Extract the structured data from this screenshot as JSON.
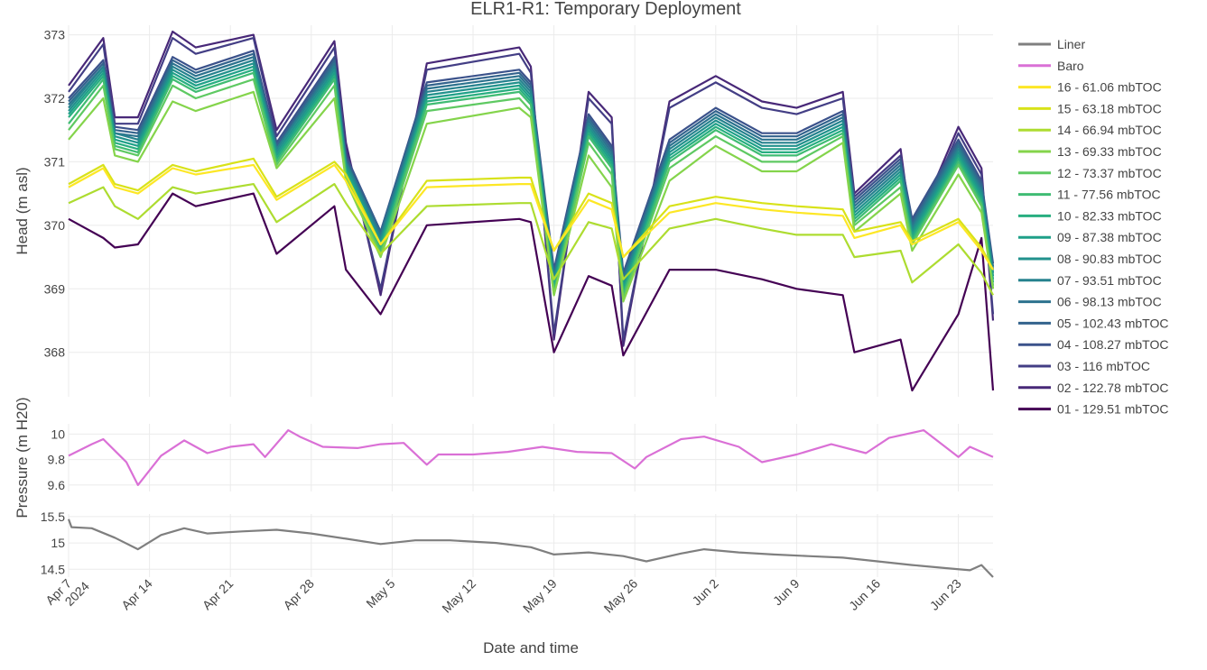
{
  "title": "ELR1-R1: Temporary Deployment",
  "xlabel": "Date and time",
  "x_ticks": [
    {
      "date": "2024-04-07",
      "label": "Apr 7",
      "label2": "2024"
    },
    {
      "date": "2024-04-14",
      "label": "Apr 14"
    },
    {
      "date": "2024-04-21",
      "label": "Apr 21"
    },
    {
      "date": "2024-04-28",
      "label": "Apr 28"
    },
    {
      "date": "2024-05-05",
      "label": "May 5"
    },
    {
      "date": "2024-05-12",
      "label": "May 12"
    },
    {
      "date": "2024-05-19",
      "label": "May 19"
    },
    {
      "date": "2024-05-26",
      "label": "May 26"
    },
    {
      "date": "2024-06-02",
      "label": "Jun 2"
    },
    {
      "date": "2024-06-09",
      "label": "Jun 9"
    },
    {
      "date": "2024-06-16",
      "label": "Jun 16"
    },
    {
      "date": "2024-06-23",
      "label": "Jun 23"
    }
  ],
  "legend": [
    {
      "name": "Liner",
      "color": "#7f7f7f"
    },
    {
      "name": "Baro",
      "color": "#da70d6"
    },
    {
      "name": "16 - 61.06 mbTOC",
      "color": "#fde725"
    },
    {
      "name": "15 - 63.18 mbTOC",
      "color": "#d8e219"
    },
    {
      "name": "14 - 66.94 mbTOC",
      "color": "#addc30"
    },
    {
      "name": "13 - 69.33 mbTOC",
      "color": "#84d44b"
    },
    {
      "name": "12 - 73.37 mbTOC",
      "color": "#5ec962"
    },
    {
      "name": "11 - 77.56 mbTOC",
      "color": "#3fbc73"
    },
    {
      "name": "10 - 82.33 mbTOC",
      "color": "#28ae80"
    },
    {
      "name": "09 - 87.38 mbTOC",
      "color": "#1fa088"
    },
    {
      "name": "08 - 90.83 mbTOC",
      "color": "#21918c"
    },
    {
      "name": "07 - 93.51 mbTOC",
      "color": "#26828e"
    },
    {
      "name": "06 - 98.13 mbTOC",
      "color": "#2c728e"
    },
    {
      "name": "05 - 102.43 mbTOC",
      "color": "#33638d"
    },
    {
      "name": "04 - 108.27 mbTOC",
      "color": "#3b528b"
    },
    {
      "name": "03 - 116 mbTOC",
      "color": "#433e85"
    },
    {
      "name": "02 - 122.78 mbTOC",
      "color": "#482878"
    },
    {
      "name": "01 - 129.51 mbTOC",
      "color": "#440154"
    }
  ],
  "chart_data": [
    {
      "type": "line",
      "ylabel": "Head (m asl)",
      "ylim": [
        367.3,
        373.15
      ],
      "yticks": [
        368,
        369,
        370,
        371,
        372,
        373
      ],
      "x_range": [
        "2024-04-07",
        "2024-06-26"
      ],
      "grid": true,
      "legend_position": "right",
      "series_note": "16 level series sampled at key dates; recessions between pumping events",
      "x": [
        "2024-04-07",
        "2024-04-10",
        "2024-04-11",
        "2024-04-13",
        "2024-04-16",
        "2024-04-18",
        "2024-04-23",
        "2024-04-25",
        "2024-04-30",
        "2024-05-01",
        "2024-05-04",
        "2024-05-08",
        "2024-05-16",
        "2024-05-17",
        "2024-05-19",
        "2024-05-22",
        "2024-05-24",
        "2024-05-25",
        "2024-05-29",
        "2024-06-02",
        "2024-06-06",
        "2024-06-09",
        "2024-06-13",
        "2024-06-14",
        "2024-06-18",
        "2024-06-19",
        "2024-06-23",
        "2024-06-25",
        "2024-06-26"
      ],
      "series": [
        {
          "name": "16 - 61.06 mbTOC",
          "values": [
            370.6,
            370.9,
            370.6,
            370.5,
            370.9,
            370.8,
            370.95,
            370.4,
            370.95,
            370.7,
            369.7,
            370.6,
            370.65,
            370.65,
            369.6,
            370.4,
            370.25,
            369.5,
            370.2,
            370.35,
            370.25,
            370.2,
            370.15,
            369.8,
            370.0,
            369.7,
            370.05,
            369.6,
            369.3
          ]
        },
        {
          "name": "15 - 63.18 mbTOC",
          "values": [
            370.65,
            370.95,
            370.65,
            370.55,
            370.95,
            370.85,
            371.05,
            370.45,
            371.0,
            370.8,
            369.7,
            370.7,
            370.75,
            370.75,
            369.6,
            370.5,
            370.35,
            369.5,
            370.3,
            370.45,
            370.35,
            370.3,
            370.25,
            369.9,
            370.05,
            369.75,
            370.1,
            369.65,
            369.3
          ]
        },
        {
          "name": "14 - 66.94 mbTOC",
          "values": [
            370.35,
            370.6,
            370.3,
            370.1,
            370.6,
            370.5,
            370.65,
            370.05,
            370.65,
            370.35,
            369.55,
            370.3,
            370.35,
            370.35,
            369.15,
            370.05,
            369.95,
            369.15,
            369.95,
            370.1,
            369.95,
            369.85,
            369.85,
            369.5,
            369.6,
            369.1,
            369.7,
            369.25,
            368.9
          ]
        },
        {
          "name": "13 - 69.33 mbTOC",
          "values": [
            371.35,
            372.0,
            371.1,
            371.0,
            371.95,
            371.8,
            372.1,
            370.9,
            372.0,
            370.7,
            369.5,
            371.6,
            371.85,
            371.7,
            368.9,
            371.1,
            370.6,
            368.8,
            370.7,
            371.25,
            370.85,
            370.85,
            371.3,
            369.9,
            370.5,
            369.6,
            370.8,
            370.2,
            369.0
          ]
        },
        {
          "name": "12 - 73.37 mbTOC",
          "values": [
            371.5,
            372.2,
            371.2,
            371.1,
            372.2,
            372.0,
            372.3,
            370.95,
            372.2,
            370.75,
            369.55,
            371.8,
            372.0,
            371.8,
            368.9,
            371.3,
            370.8,
            368.85,
            370.9,
            371.4,
            371.0,
            371.0,
            371.4,
            370.0,
            370.6,
            369.7,
            370.95,
            370.3,
            369.0
          ]
        },
        {
          "name": "11 - 77.56 mbTOC",
          "values": [
            371.6,
            372.3,
            371.25,
            371.15,
            372.3,
            372.1,
            372.4,
            371.0,
            372.3,
            370.8,
            369.6,
            371.9,
            372.1,
            371.9,
            368.95,
            371.4,
            370.9,
            368.9,
            371.0,
            371.5,
            371.1,
            371.1,
            371.45,
            370.05,
            370.7,
            369.75,
            371.0,
            370.35,
            369.05
          ]
        },
        {
          "name": "10 - 82.33 mbTOC",
          "values": [
            371.7,
            372.35,
            371.3,
            371.2,
            372.35,
            372.15,
            372.45,
            371.05,
            372.35,
            370.85,
            369.65,
            371.95,
            372.15,
            371.95,
            369.0,
            371.45,
            370.95,
            368.95,
            371.05,
            371.55,
            371.15,
            371.15,
            371.5,
            370.1,
            370.75,
            369.8,
            371.05,
            370.4,
            369.1
          ]
        },
        {
          "name": "09 - 87.38 mbTOC",
          "values": [
            371.75,
            372.4,
            371.35,
            371.25,
            372.4,
            372.2,
            372.5,
            371.1,
            372.4,
            370.9,
            369.7,
            372.0,
            372.2,
            372.0,
            369.05,
            371.5,
            371.0,
            369.0,
            371.1,
            371.6,
            371.2,
            371.2,
            371.55,
            370.15,
            370.8,
            369.85,
            371.1,
            370.45,
            369.15
          ]
        },
        {
          "name": "08 - 90.83 mbTOC",
          "values": [
            371.8,
            372.45,
            371.4,
            371.3,
            372.45,
            372.25,
            372.55,
            371.15,
            372.45,
            370.95,
            369.75,
            372.05,
            372.25,
            372.05,
            369.1,
            371.55,
            371.05,
            369.05,
            371.15,
            371.65,
            371.25,
            371.25,
            371.6,
            370.2,
            370.85,
            369.9,
            371.15,
            370.5,
            369.2
          ]
        },
        {
          "name": "07 - 93.51 mbTOC",
          "values": [
            371.85,
            372.5,
            371.45,
            371.35,
            372.5,
            372.3,
            372.6,
            371.2,
            372.5,
            371.0,
            369.8,
            372.1,
            372.3,
            372.1,
            369.15,
            371.6,
            371.1,
            369.1,
            371.2,
            371.7,
            371.3,
            371.3,
            371.65,
            370.25,
            370.9,
            369.95,
            371.2,
            370.55,
            369.25
          ]
        },
        {
          "name": "06 - 98.13 mbTOC",
          "values": [
            371.9,
            372.5,
            371.45,
            371.4,
            372.55,
            372.35,
            372.65,
            371.2,
            372.55,
            371.0,
            369.85,
            372.15,
            372.35,
            372.15,
            369.2,
            371.65,
            371.15,
            369.15,
            371.25,
            371.75,
            371.35,
            371.35,
            371.7,
            370.3,
            370.95,
            370.0,
            371.25,
            370.6,
            369.3
          ]
        },
        {
          "name": "05 - 102.43 mbTOC",
          "values": [
            371.95,
            372.55,
            371.5,
            371.45,
            372.6,
            372.4,
            372.7,
            371.25,
            372.6,
            371.05,
            369.9,
            372.2,
            372.4,
            372.2,
            369.25,
            371.7,
            371.2,
            369.2,
            371.3,
            371.8,
            371.4,
            371.4,
            371.75,
            370.35,
            371.0,
            370.05,
            371.3,
            370.65,
            369.35
          ]
        },
        {
          "name": "04 - 108.27 mbTOC",
          "values": [
            372.0,
            372.6,
            371.55,
            371.5,
            372.65,
            372.45,
            372.75,
            371.3,
            372.65,
            371.1,
            369.9,
            372.25,
            372.45,
            372.25,
            369.3,
            371.75,
            371.25,
            369.25,
            371.35,
            371.85,
            371.45,
            371.45,
            371.8,
            370.4,
            371.05,
            370.1,
            371.35,
            370.7,
            369.4
          ]
        },
        {
          "name": "03 - 116 mbTOC",
          "values": [
            372.1,
            372.85,
            371.6,
            371.6,
            372.95,
            372.7,
            372.95,
            371.4,
            372.8,
            371.2,
            369.0,
            372.45,
            372.7,
            372.4,
            368.3,
            372.0,
            371.6,
            368.2,
            371.85,
            372.25,
            371.85,
            371.75,
            372.0,
            370.45,
            371.1,
            369.8,
            371.45,
            370.8,
            368.6
          ]
        },
        {
          "name": "02 - 122.78 mbTOC",
          "values": [
            372.2,
            372.95,
            371.7,
            371.7,
            373.05,
            372.8,
            373.0,
            371.5,
            372.9,
            371.3,
            368.9,
            372.55,
            372.8,
            372.5,
            368.2,
            372.1,
            371.7,
            368.1,
            371.95,
            372.35,
            371.95,
            371.85,
            372.1,
            370.5,
            371.2,
            369.85,
            371.55,
            370.9,
            368.5
          ]
        },
        {
          "name": "01 - 129.51 mbTOC",
          "values": [
            370.1,
            369.8,
            369.65,
            369.7,
            370.5,
            370.3,
            370.5,
            369.55,
            370.3,
            369.3,
            368.6,
            370.0,
            370.1,
            370.05,
            368.0,
            369.2,
            369.05,
            367.95,
            369.3,
            369.3,
            369.15,
            369.0,
            368.9,
            368.0,
            368.2,
            367.4,
            368.6,
            369.8,
            367.4
          ]
        }
      ]
    },
    {
      "type": "line",
      "ylabel": "Pressure (m H20)",
      "ylim": [
        9.55,
        10.08
      ],
      "yticks": [
        9.6,
        9.8,
        10
      ],
      "series": [
        {
          "name": "Baro",
          "x": [
            "2024-04-07",
            "2024-04-09",
            "2024-04-10",
            "2024-04-12",
            "2024-04-13",
            "2024-04-15",
            "2024-04-17",
            "2024-04-19",
            "2024-04-21",
            "2024-04-23",
            "2024-04-24",
            "2024-04-26",
            "2024-04-27",
            "2024-04-29",
            "2024-05-02",
            "2024-05-04",
            "2024-05-06",
            "2024-05-08",
            "2024-05-09",
            "2024-05-12",
            "2024-05-15",
            "2024-05-18",
            "2024-05-21",
            "2024-05-24",
            "2024-05-26",
            "2024-05-27",
            "2024-05-30",
            "2024-06-01",
            "2024-06-04",
            "2024-06-06",
            "2024-06-09",
            "2024-06-12",
            "2024-06-15",
            "2024-06-17",
            "2024-06-20",
            "2024-06-23",
            "2024-06-24",
            "2024-06-26"
          ],
          "values": [
            9.83,
            9.92,
            9.96,
            9.78,
            9.6,
            9.83,
            9.95,
            9.85,
            9.9,
            9.92,
            9.82,
            10.03,
            9.98,
            9.9,
            9.89,
            9.92,
            9.93,
            9.76,
            9.84,
            9.84,
            9.86,
            9.9,
            9.86,
            9.85,
            9.73,
            9.82,
            9.96,
            9.98,
            9.9,
            9.78,
            9.84,
            9.92,
            9.85,
            9.97,
            10.03,
            9.82,
            9.9,
            9.82
          ]
        }
      ]
    },
    {
      "type": "line",
      "ylabel": "",
      "ylim": [
        14.35,
        15.55
      ],
      "yticks": [
        14.5,
        15,
        15.5
      ],
      "series": [
        {
          "name": "Liner",
          "x": [
            "2024-04-07",
            "2024-04-07T06",
            "2024-04-09",
            "2024-04-11",
            "2024-04-13",
            "2024-04-15",
            "2024-04-17",
            "2024-04-19",
            "2024-04-22",
            "2024-04-25",
            "2024-04-28",
            "2024-05-01",
            "2024-05-04",
            "2024-05-07",
            "2024-05-10",
            "2024-05-14",
            "2024-05-17",
            "2024-05-19",
            "2024-05-22",
            "2024-05-25",
            "2024-05-27",
            "2024-05-30",
            "2024-06-01",
            "2024-06-04",
            "2024-06-07",
            "2024-06-10",
            "2024-06-13",
            "2024-06-16",
            "2024-06-19",
            "2024-06-22",
            "2024-06-24",
            "2024-06-25",
            "2024-06-26"
          ],
          "values": [
            15.45,
            15.3,
            15.28,
            15.1,
            14.88,
            15.15,
            15.28,
            15.18,
            15.22,
            15.25,
            15.18,
            15.08,
            14.98,
            15.05,
            15.05,
            15.0,
            14.92,
            14.78,
            14.82,
            14.75,
            14.65,
            14.8,
            14.88,
            14.82,
            14.78,
            14.75,
            14.72,
            14.65,
            14.58,
            14.52,
            14.48,
            14.58,
            14.35
          ]
        }
      ]
    }
  ]
}
